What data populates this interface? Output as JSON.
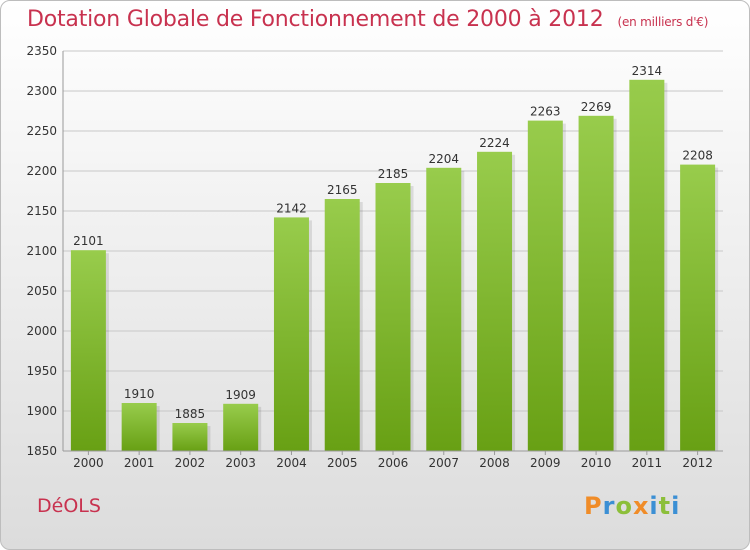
{
  "header": {
    "title": "Dotation Globale de Fonctionnement de 2000 à 2012",
    "unit": "(en milliers d'€)"
  },
  "footer": {
    "city": "DéOLS",
    "logo": "Proxiti"
  },
  "colors": {
    "title": "#c8324f",
    "bar_top": "#98cc4c",
    "bar_bottom": "#68a014",
    "grid": "#c8c8c8",
    "logo_letters": [
      "#f08c28",
      "#3b8fd4",
      "#8cbf3a",
      "#f08c28",
      "#3b8fd4",
      "#8cbf3a",
      "#3b8fd4"
    ]
  },
  "chart_data": {
    "type": "bar",
    "title": "Dotation Globale de Fonctionnement de 2000 à 2012",
    "xlabel": "",
    "ylabel": "",
    "categories": [
      "2000",
      "2001",
      "2002",
      "2003",
      "2004",
      "2005",
      "2006",
      "2007",
      "2008",
      "2009",
      "2010",
      "2011",
      "2012"
    ],
    "values": [
      2101,
      1910,
      1885,
      1909,
      2142,
      2165,
      2185,
      2204,
      2224,
      2263,
      2269,
      2314,
      2208
    ],
    "ylim": [
      1850,
      2350
    ],
    "yticks": [
      1850,
      1900,
      1950,
      2000,
      2050,
      2100,
      2150,
      2200,
      2250,
      2300,
      2350
    ],
    "grid": true,
    "data_labels": true
  }
}
